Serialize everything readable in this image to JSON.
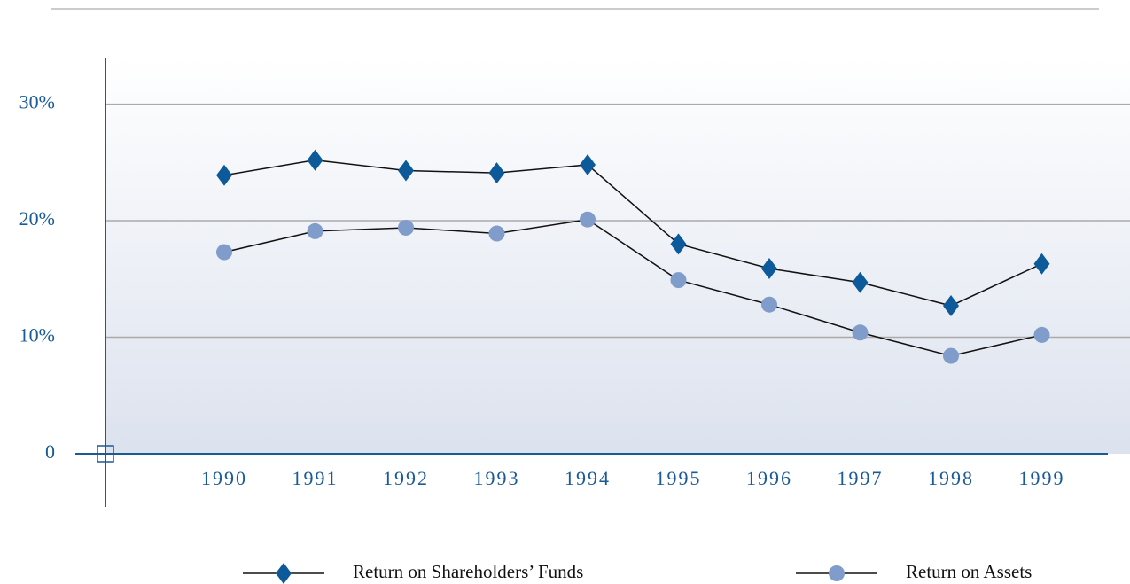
{
  "chart_data": {
    "type": "line",
    "categories": [
      "1990",
      "1991",
      "1992",
      "1993",
      "1994",
      "1995",
      "1996",
      "1997",
      "1998",
      "1999"
    ],
    "series": [
      {
        "name": "Return on Shareholders’ Funds",
        "color": "#0d5a9a",
        "marker": "diamond",
        "values": [
          23.9,
          25.2,
          24.3,
          24.1,
          24.8,
          18.0,
          15.9,
          14.7,
          12.7,
          16.3
        ]
      },
      {
        "name": "Return on Assets",
        "color": "#7f9ccb",
        "marker": "circle",
        "values": [
          17.3,
          19.1,
          19.4,
          18.9,
          20.1,
          14.9,
          12.8,
          10.4,
          8.4,
          10.2
        ]
      }
    ],
    "ylim": [
      0,
      34
    ],
    "yticks": [
      0,
      {
        "value": 10,
        "label": "10%"
      },
      {
        "value": 20,
        "label": "20%"
      },
      {
        "value": 30,
        "label": "30%"
      }
    ],
    "grid": true
  }
}
